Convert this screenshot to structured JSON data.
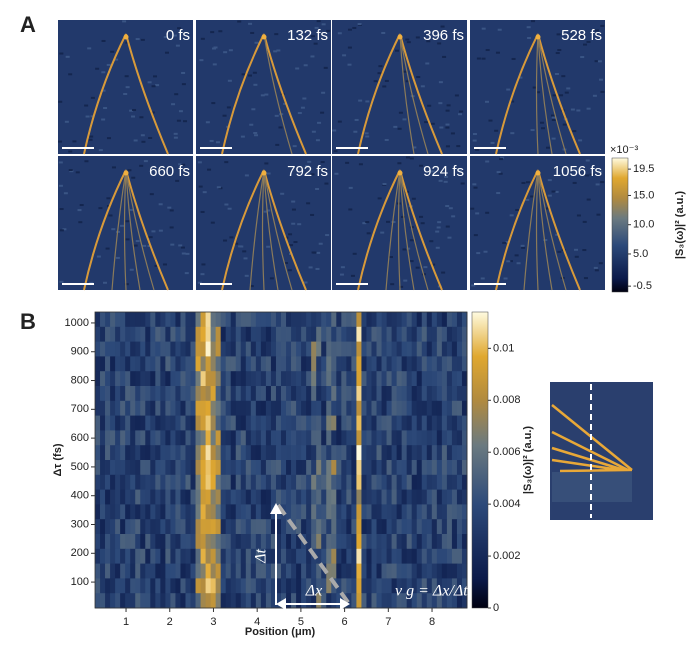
{
  "panel_a": {
    "label": "A",
    "frames": [
      "0 fs",
      "132 fs",
      "396 fs",
      "528 fs",
      "660 fs",
      "792 fs",
      "924 fs",
      "1056 fs"
    ],
    "colorbar": {
      "multiplier": "×10⁻³",
      "title": "|S₃(ω)|² (a.u.)",
      "lim": [
        -1.5,
        21.4
      ],
      "ticks": [
        {
          "value": 19.5,
          "label": "19.5"
        },
        {
          "value": 15,
          "label": "15.0"
        },
        {
          "value": 10,
          "label": "10.0"
        },
        {
          "value": 5,
          "label": "5.0"
        },
        -0.5
      ]
    }
  },
  "panel_b": {
    "label": "B",
    "xlabel": "Position (μm)",
    "ylabel": "Δτ (fs)",
    "xlim": [
      0.29,
      8.8
    ],
    "xticks": [
      1,
      2,
      3,
      4,
      5,
      6,
      7,
      8
    ],
    "ylim": [
      10,
      1038
    ],
    "yticks": [
      100,
      200,
      300,
      400,
      500,
      600,
      700,
      800,
      900,
      1000
    ],
    "colorbar": {
      "title": "|S₃(ω)|² (a.u.)",
      "lim": [
        0,
        0.0114
      ],
      "ticks": [
        0,
        0.002,
        0.004,
        0.006,
        0.008,
        0.01
      ]
    },
    "annotations": {
      "dt": "Δt",
      "dx": "Δx",
      "vg": "v g = Δx/Δt"
    }
  }
}
